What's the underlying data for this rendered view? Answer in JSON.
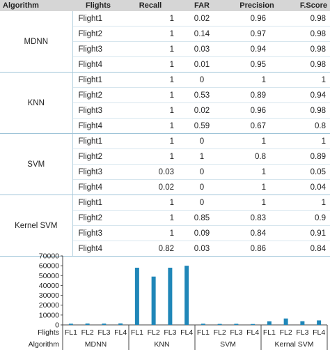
{
  "table": {
    "headers": [
      "Algorithm",
      "Flights",
      "Recall",
      "FAR",
      "Precision",
      "F.Score"
    ],
    "groups": [
      {
        "algorithm": "MDNN",
        "rows": [
          {
            "flight": "Flight1",
            "recall": "1",
            "far": "0.02",
            "precision": "0.96",
            "fscore": "0.98"
          },
          {
            "flight": "Flight2",
            "recall": "1",
            "far": "0.14",
            "precision": "0.97",
            "fscore": "0.98"
          },
          {
            "flight": "Flight3",
            "recall": "1",
            "far": "0.03",
            "precision": "0.94",
            "fscore": "0.98"
          },
          {
            "flight": "Flight4",
            "recall": "1",
            "far": "0.01",
            "precision": "0.95",
            "fscore": "0.98"
          }
        ]
      },
      {
        "algorithm": "KNN",
        "rows": [
          {
            "flight": "Flight1",
            "recall": "1",
            "far": "0",
            "precision": "1",
            "fscore": "1"
          },
          {
            "flight": "Flight2",
            "recall": "1",
            "far": "0.53",
            "precision": "0.89",
            "fscore": "0.94"
          },
          {
            "flight": "Flight3",
            "recall": "1",
            "far": "0.02",
            "precision": "0.96",
            "fscore": "0.98"
          },
          {
            "flight": "Flight4",
            "recall": "1",
            "far": "0.59",
            "precision": "0.67",
            "fscore": "0.8"
          }
        ]
      },
      {
        "algorithm": "SVM",
        "rows": [
          {
            "flight": "Flight1",
            "recall": "1",
            "far": "0",
            "precision": "1",
            "fscore": "1"
          },
          {
            "flight": "Flight2",
            "recall": "1",
            "far": "1",
            "precision": "0.8",
            "fscore": "0.89"
          },
          {
            "flight": "Flight3",
            "recall": "0.03",
            "far": "0",
            "precision": "1",
            "fscore": "0.05"
          },
          {
            "flight": "Flight4",
            "recall": "0.02",
            "far": "0",
            "precision": "1",
            "fscore": "0.04"
          }
        ]
      },
      {
        "algorithm": "Kernel SVM",
        "rows": [
          {
            "flight": "Flight1",
            "recall": "1",
            "far": "0",
            "precision": "1",
            "fscore": "1"
          },
          {
            "flight": "Flight2",
            "recall": "1",
            "far": "0.85",
            "precision": "0.83",
            "fscore": "0.9"
          },
          {
            "flight": "Flight3",
            "recall": "1",
            "far": "0.09",
            "precision": "0.84",
            "fscore": "0.91"
          },
          {
            "flight": "Flight4",
            "recall": "0.82",
            "far": "0.03",
            "precision": "0.86",
            "fscore": "0.84"
          }
        ]
      }
    ]
  },
  "chart_data": {
    "type": "bar",
    "title": "",
    "xlabel": "",
    "ylabel": "",
    "ylim": [
      0,
      70000
    ],
    "yticks": [
      0,
      10000,
      20000,
      30000,
      40000,
      50000,
      60000,
      70000
    ],
    "grid": false,
    "bar_color": "#1f86b8",
    "row_labels": {
      "flights": "Flights",
      "algorithm": "Algorithm"
    },
    "groups": [
      {
        "algorithm": "MDNN",
        "flights": [
          "FL1",
          "FL2",
          "FL3",
          "FL4"
        ],
        "values": [
          1200,
          1400,
          1300,
          1500
        ]
      },
      {
        "algorithm": "KNN",
        "flights": [
          "FL1",
          "FL2",
          "FL3",
          "FL4"
        ],
        "values": [
          58000,
          49000,
          58000,
          60000
        ]
      },
      {
        "algorithm": "SVM",
        "flights": [
          "FL1",
          "FL2",
          "FL3",
          "FL4"
        ],
        "values": [
          1200,
          1000,
          1100,
          900
        ]
      },
      {
        "algorithm": "Kernal SVM",
        "flights": [
          "FL1",
          "FL2",
          "FL3",
          "FL4"
        ],
        "values": [
          3600,
          6500,
          3700,
          4600
        ]
      }
    ]
  }
}
